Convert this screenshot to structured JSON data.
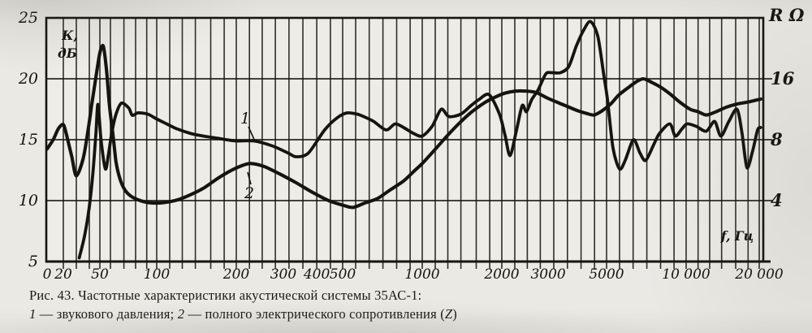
{
  "figure": {
    "caption_line1": "Рис. 43. Частотные характеристики акустической системы 35АС-1:",
    "caption_line2_segments": [
      {
        "text": "1",
        "italic": true
      },
      {
        "text": " — звукового давления; ",
        "italic": false
      },
      {
        "text": "2",
        "italic": true
      },
      {
        "text": " — полного электрического сопротивления (",
        "italic": false
      },
      {
        "text": "Z",
        "italic": true
      },
      {
        "text": ")",
        "italic": false
      }
    ]
  },
  "chart_data": {
    "type": "line",
    "title": "Частотные характеристики акустической системы 35АС-1",
    "grid": true,
    "ink_color": "#15140f",
    "paper_color": "#eae9e4",
    "x_axis": {
      "label": "f, Гц",
      "scale": "piecewise-log",
      "anchors": [
        [
          14,
          58
        ],
        [
          20,
          78
        ],
        [
          30,
          94
        ],
        [
          40,
          110
        ],
        [
          50,
          123
        ],
        [
          60,
          136
        ],
        [
          70,
          152.6
        ],
        [
          80,
          167
        ],
        [
          100,
          193
        ],
        [
          200,
          291
        ],
        [
          500,
          422
        ],
        [
          1000,
          520
        ],
        [
          2000,
          618
        ],
        [
          5000,
          747
        ],
        [
          10000,
          845
        ],
        [
          20000,
          935
        ],
        [
          21000,
          941
        ]
      ],
      "ticks": [
        {
          "label": "0",
          "f": 14
        },
        {
          "label": "20",
          "f": 20
        },
        {
          "label": "50",
          "f": 50
        },
        {
          "label": "100",
          "f": 100
        },
        {
          "label": "200",
          "f": 200
        },
        {
          "label": "300",
          "f": 300
        },
        {
          "label": "400",
          "f": 400
        },
        {
          "label": "500",
          "f": 500
        },
        {
          "label": "1000",
          "f": 1000
        },
        {
          "label": "2000",
          "f": 2000
        },
        {
          "label": "3000",
          "f": 3000
        },
        {
          "label": "5000",
          "f": 5000
        },
        {
          "label": "10 000",
          "f": 10000
        },
        {
          "label": "20 000",
          "f": 20000
        }
      ]
    },
    "gridline_freqs": [
      20,
      30,
      40,
      50,
      60,
      70,
      80,
      90,
      100,
      112,
      125,
      140,
      160,
      180,
      200,
      224,
      250,
      280,
      315,
      355,
      400,
      450,
      500,
      560,
      630,
      710,
      800,
      900,
      1000,
      1120,
      1250,
      1400,
      1600,
      1800,
      2000,
      2240,
      2500,
      2800,
      3150,
      3550,
      4000,
      4500,
      5000,
      5600,
      6300,
      7100,
      8000,
      9000,
      10000,
      11200,
      12500,
      14000,
      16000,
      18000,
      20000
    ],
    "y_axis_left": {
      "label_lines": [
        "К,",
        "дБ"
      ],
      "unit": "дБ",
      "range": [
        5,
        25
      ],
      "ticks": [
        25,
        20,
        15,
        10,
        5
      ]
    },
    "y_axis_right": {
      "label": "R Ω",
      "unit": "Ом",
      "scale": "log2",
      "ticks": [
        16,
        8,
        4
      ]
    },
    "curve_labels": [
      {
        "text": "1",
        "x": 302,
        "y": 152,
        "leader": [
          306,
          156,
          314,
          174
        ]
      },
      {
        "text": "2",
        "x": 307,
        "y": 244,
        "leader": [
          309,
          227,
          305,
          212
        ]
      }
    ],
    "series": [
      {
        "name": "1",
        "legend": "звукового давления",
        "unit": "дБ",
        "axis": "left",
        "points": [
          [
            32,
            5.3
          ],
          [
            36,
            7.1
          ],
          [
            40,
            9.5
          ],
          [
            43,
            12.1
          ],
          [
            46,
            15.5
          ],
          [
            48,
            17.9
          ],
          [
            51,
            15.0
          ],
          [
            55,
            12.6
          ],
          [
            58,
            13.8
          ],
          [
            61,
            15.6
          ],
          [
            64,
            17.1
          ],
          [
            68,
            18.0
          ],
          [
            74,
            17.6
          ],
          [
            77,
            17.0
          ],
          [
            82,
            17.2
          ],
          [
            91,
            17.1
          ],
          [
            100,
            16.7
          ],
          [
            109,
            16.3
          ],
          [
            119,
            15.9
          ],
          [
            135,
            15.5
          ],
          [
            150,
            15.3
          ],
          [
            172,
            15.1
          ],
          [
            200,
            14.9
          ],
          [
            233,
            14.9
          ],
          [
            272,
            14.5
          ],
          [
            313,
            13.9
          ],
          [
            335,
            13.6
          ],
          [
            372,
            13.9
          ],
          [
            428,
            15.8
          ],
          [
            477,
            16.8
          ],
          [
            520,
            17.2
          ],
          [
            567,
            17.1
          ],
          [
            600,
            16.9
          ],
          [
            655,
            16.5
          ],
          [
            730,
            15.8
          ],
          [
            790,
            16.3
          ],
          [
            850,
            16.0
          ],
          [
            930,
            15.5
          ],
          [
            1000,
            15.3
          ],
          [
            1090,
            16.1
          ],
          [
            1180,
            17.5
          ],
          [
            1260,
            16.9
          ],
          [
            1400,
            17.1
          ],
          [
            1530,
            17.8
          ],
          [
            1640,
            18.3
          ],
          [
            1790,
            18.7
          ],
          [
            1960,
            17.1
          ],
          [
            2060,
            15.3
          ],
          [
            2150,
            13.7
          ],
          [
            2270,
            15.7
          ],
          [
            2390,
            17.8
          ],
          [
            2480,
            17.3
          ],
          [
            2600,
            18.3
          ],
          [
            2750,
            19.1
          ],
          [
            2940,
            20.4
          ],
          [
            3110,
            20.5
          ],
          [
            3340,
            20.5
          ],
          [
            3590,
            21.0
          ],
          [
            3840,
            22.7
          ],
          [
            4070,
            23.9
          ],
          [
            4340,
            24.7
          ],
          [
            4630,
            23.5
          ],
          [
            4880,
            20.3
          ],
          [
            5040,
            18.3
          ],
          [
            5290,
            14.3
          ],
          [
            5600,
            12.6
          ],
          [
            5880,
            13.3
          ],
          [
            6320,
            15.0
          ],
          [
            6690,
            13.9
          ],
          [
            7030,
            13.3
          ],
          [
            7540,
            14.6
          ],
          [
            7920,
            15.5
          ],
          [
            8670,
            16.3
          ],
          [
            9100,
            15.3
          ],
          [
            9650,
            15.9
          ],
          [
            10100,
            16.3
          ],
          [
            11000,
            16.1
          ],
          [
            12100,
            15.7
          ],
          [
            13100,
            16.5
          ],
          [
            13900,
            15.3
          ],
          [
            15000,
            16.5
          ],
          [
            16200,
            17.5
          ],
          [
            17000,
            15.5
          ],
          [
            17800,
            12.7
          ],
          [
            18800,
            14.1
          ],
          [
            19700,
            15.8
          ],
          [
            20300,
            16.0
          ]
        ]
      },
      {
        "name": "2",
        "legend": "полного электрического сопротивления (Z)",
        "unit": "Ом",
        "axis": "right",
        "points": [
          [
            14,
            7.2
          ],
          [
            16,
            8.0
          ],
          [
            18,
            9.1
          ],
          [
            20,
            9.5
          ],
          [
            22,
            8.5
          ],
          [
            26,
            6.6
          ],
          [
            30,
            5.3
          ],
          [
            35,
            6.5
          ],
          [
            39,
            9.0
          ],
          [
            42,
            11.8
          ],
          [
            46,
            16.3
          ],
          [
            50,
            21.5
          ],
          [
            53,
            23.2
          ],
          [
            56,
            17.8
          ],
          [
            59,
            11.8
          ],
          [
            62,
            8.2
          ],
          [
            64,
            6.2
          ],
          [
            67,
            5.1
          ],
          [
            71,
            4.5
          ],
          [
            76,
            4.2
          ],
          [
            84,
            4.0
          ],
          [
            93,
            3.9
          ],
          [
            105,
            3.9
          ],
          [
            117,
            4.0
          ],
          [
            130,
            4.2
          ],
          [
            150,
            4.6
          ],
          [
            172,
            5.2
          ],
          [
            200,
            5.8
          ],
          [
            225,
            6.1
          ],
          [
            254,
            5.9
          ],
          [
            292,
            5.4
          ],
          [
            335,
            4.9
          ],
          [
            385,
            4.4
          ],
          [
            443,
            4.0
          ],
          [
            500,
            3.8
          ],
          [
            547,
            3.7
          ],
          [
            609,
            3.9
          ],
          [
            678,
            4.1
          ],
          [
            753,
            4.5
          ],
          [
            850,
            5.0
          ],
          [
            932,
            5.6
          ],
          [
            1000,
            6.1
          ],
          [
            1112,
            7.1
          ],
          [
            1236,
            8.3
          ],
          [
            1375,
            9.6
          ],
          [
            1529,
            10.9
          ],
          [
            1724,
            12.2
          ],
          [
            1890,
            13.0
          ],
          [
            2058,
            13.6
          ],
          [
            2254,
            13.9
          ],
          [
            2475,
            13.9
          ],
          [
            2696,
            13.7
          ],
          [
            2960,
            12.9
          ],
          [
            3270,
            12.2
          ],
          [
            3593,
            11.6
          ],
          [
            3905,
            11.1
          ],
          [
            4180,
            10.8
          ],
          [
            4480,
            10.6
          ],
          [
            4800,
            11.1
          ],
          [
            5180,
            12.0
          ],
          [
            5560,
            13.3
          ],
          [
            6010,
            14.4
          ],
          [
            6450,
            15.4
          ],
          [
            6880,
            16.0
          ],
          [
            7380,
            15.4
          ],
          [
            7970,
            14.6
          ],
          [
            8670,
            13.5
          ],
          [
            9520,
            12.2
          ],
          [
            10400,
            11.3
          ],
          [
            11200,
            11.0
          ],
          [
            12100,
            10.6
          ],
          [
            13300,
            11.0
          ],
          [
            14700,
            11.6
          ],
          [
            16200,
            12.0
          ],
          [
            18100,
            12.3
          ],
          [
            20300,
            12.7
          ]
        ]
      }
    ]
  }
}
